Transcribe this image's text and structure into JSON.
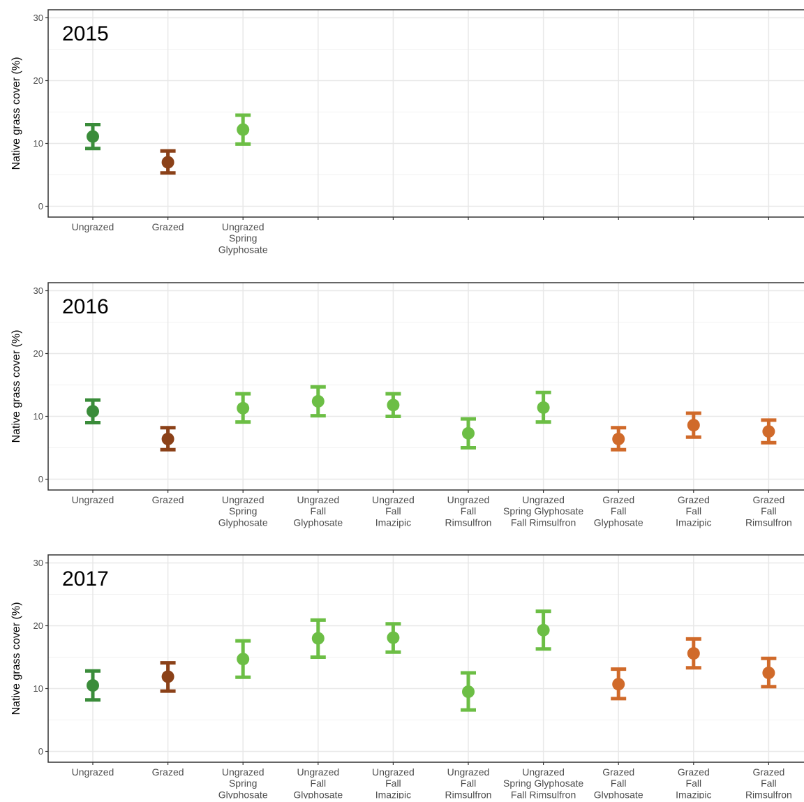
{
  "chart_data": [
    {
      "type": "scatter",
      "title": "2015",
      "ylabel": "Native grass cover (%)",
      "ylim": [
        0,
        30
      ],
      "yticks": [
        0,
        10,
        20,
        30
      ],
      "grid": true,
      "categories": [
        [
          "Ungrazed"
        ],
        [
          "Grazed"
        ],
        [
          "Ungrazed",
          "Spring",
          "Glyphosate"
        ],
        [],
        [],
        [],
        [],
        [],
        [],
        []
      ],
      "points": [
        {
          "category": 0,
          "y": 11.1,
          "lo": 9.2,
          "hi": 13.0,
          "color": "#3a8c3a"
        },
        {
          "category": 1,
          "y": 7.0,
          "lo": 5.3,
          "hi": 8.8,
          "color": "#8b4118"
        },
        {
          "category": 2,
          "y": 12.2,
          "lo": 9.9,
          "hi": 14.5,
          "color": "#6cbe45"
        }
      ]
    },
    {
      "type": "scatter",
      "title": "2016",
      "ylabel": "Native grass cover (%)",
      "ylim": [
        0,
        30
      ],
      "yticks": [
        0,
        10,
        20,
        30
      ],
      "grid": true,
      "categories": [
        [
          "Ungrazed"
        ],
        [
          "Grazed"
        ],
        [
          "Ungrazed",
          "Spring",
          "Glyphosate"
        ],
        [
          "Ungrazed",
          "Fall",
          "Glyphosate"
        ],
        [
          "Ungrazed",
          "Fall",
          "Imazipic"
        ],
        [
          "Ungrazed",
          "Fall",
          "Rimsulfron"
        ],
        [
          "Ungrazed",
          "Spring Glyphosate",
          "Fall Rimsulfron"
        ],
        [
          "Grazed",
          "Fall",
          "Glyphosate"
        ],
        [
          "Grazed",
          "Fall",
          "Imazipic"
        ],
        [
          "Grazed",
          "Fall",
          "Rimsulfron"
        ]
      ],
      "points": [
        {
          "category": 0,
          "y": 10.8,
          "lo": 9.0,
          "hi": 12.6,
          "color": "#3a8c3a"
        },
        {
          "category": 1,
          "y": 6.4,
          "lo": 4.7,
          "hi": 8.2,
          "color": "#8b4118"
        },
        {
          "category": 2,
          "y": 11.3,
          "lo": 9.1,
          "hi": 13.6,
          "color": "#6cbe45"
        },
        {
          "category": 3,
          "y": 12.4,
          "lo": 10.1,
          "hi": 14.7,
          "color": "#6cbe45"
        },
        {
          "category": 4,
          "y": 11.8,
          "lo": 10.0,
          "hi": 13.6,
          "color": "#6cbe45"
        },
        {
          "category": 5,
          "y": 7.3,
          "lo": 5.0,
          "hi": 9.6,
          "color": "#6cbe45"
        },
        {
          "category": 6,
          "y": 11.4,
          "lo": 9.1,
          "hi": 13.8,
          "color": "#6cbe45"
        },
        {
          "category": 7,
          "y": 6.4,
          "lo": 4.7,
          "hi": 8.2,
          "color": "#d06a2a"
        },
        {
          "category": 8,
          "y": 8.6,
          "lo": 6.7,
          "hi": 10.5,
          "color": "#d06a2a"
        },
        {
          "category": 9,
          "y": 7.6,
          "lo": 5.8,
          "hi": 9.4,
          "color": "#d06a2a"
        }
      ]
    },
    {
      "type": "scatter",
      "title": "2017",
      "ylabel": "Native grass cover (%)",
      "ylim": [
        0,
        30
      ],
      "yticks": [
        0,
        10,
        20,
        30
      ],
      "grid": true,
      "categories": [
        [
          "Ungrazed"
        ],
        [
          "Grazed"
        ],
        [
          "Ungrazed",
          "Spring",
          "Glyphosate"
        ],
        [
          "Ungrazed",
          "Fall",
          "Glyphosate"
        ],
        [
          "Ungrazed",
          "Fall",
          "Imazipic"
        ],
        [
          "Ungrazed",
          "Fall",
          "Rimsulfron"
        ],
        [
          "Ungrazed",
          "Spring Glyphosate",
          "Fall Rimsulfron"
        ],
        [
          "Grazed",
          "Fall",
          "Glyphosate"
        ],
        [
          "Grazed",
          "Fall",
          "Imazipic"
        ],
        [
          "Grazed",
          "Fall",
          "Rimsulfron"
        ]
      ],
      "points": [
        {
          "category": 0,
          "y": 10.5,
          "lo": 8.2,
          "hi": 12.8,
          "color": "#3a8c3a"
        },
        {
          "category": 1,
          "y": 11.9,
          "lo": 9.6,
          "hi": 14.1,
          "color": "#8b4118"
        },
        {
          "category": 2,
          "y": 14.7,
          "lo": 11.8,
          "hi": 17.6,
          "color": "#6cbe45"
        },
        {
          "category": 3,
          "y": 18.0,
          "lo": 15.0,
          "hi": 20.9,
          "color": "#6cbe45"
        },
        {
          "category": 4,
          "y": 18.1,
          "lo": 15.8,
          "hi": 20.3,
          "color": "#6cbe45"
        },
        {
          "category": 5,
          "y": 9.5,
          "lo": 6.6,
          "hi": 12.5,
          "color": "#6cbe45"
        },
        {
          "category": 6,
          "y": 19.3,
          "lo": 16.3,
          "hi": 22.3,
          "color": "#6cbe45"
        },
        {
          "category": 7,
          "y": 10.7,
          "lo": 8.4,
          "hi": 13.1,
          "color": "#d06a2a"
        },
        {
          "category": 8,
          "y": 15.6,
          "lo": 13.3,
          "hi": 17.9,
          "color": "#d06a2a"
        },
        {
          "category": 9,
          "y": 12.5,
          "lo": 10.3,
          "hi": 14.8,
          "color": "#d06a2a"
        }
      ]
    }
  ]
}
